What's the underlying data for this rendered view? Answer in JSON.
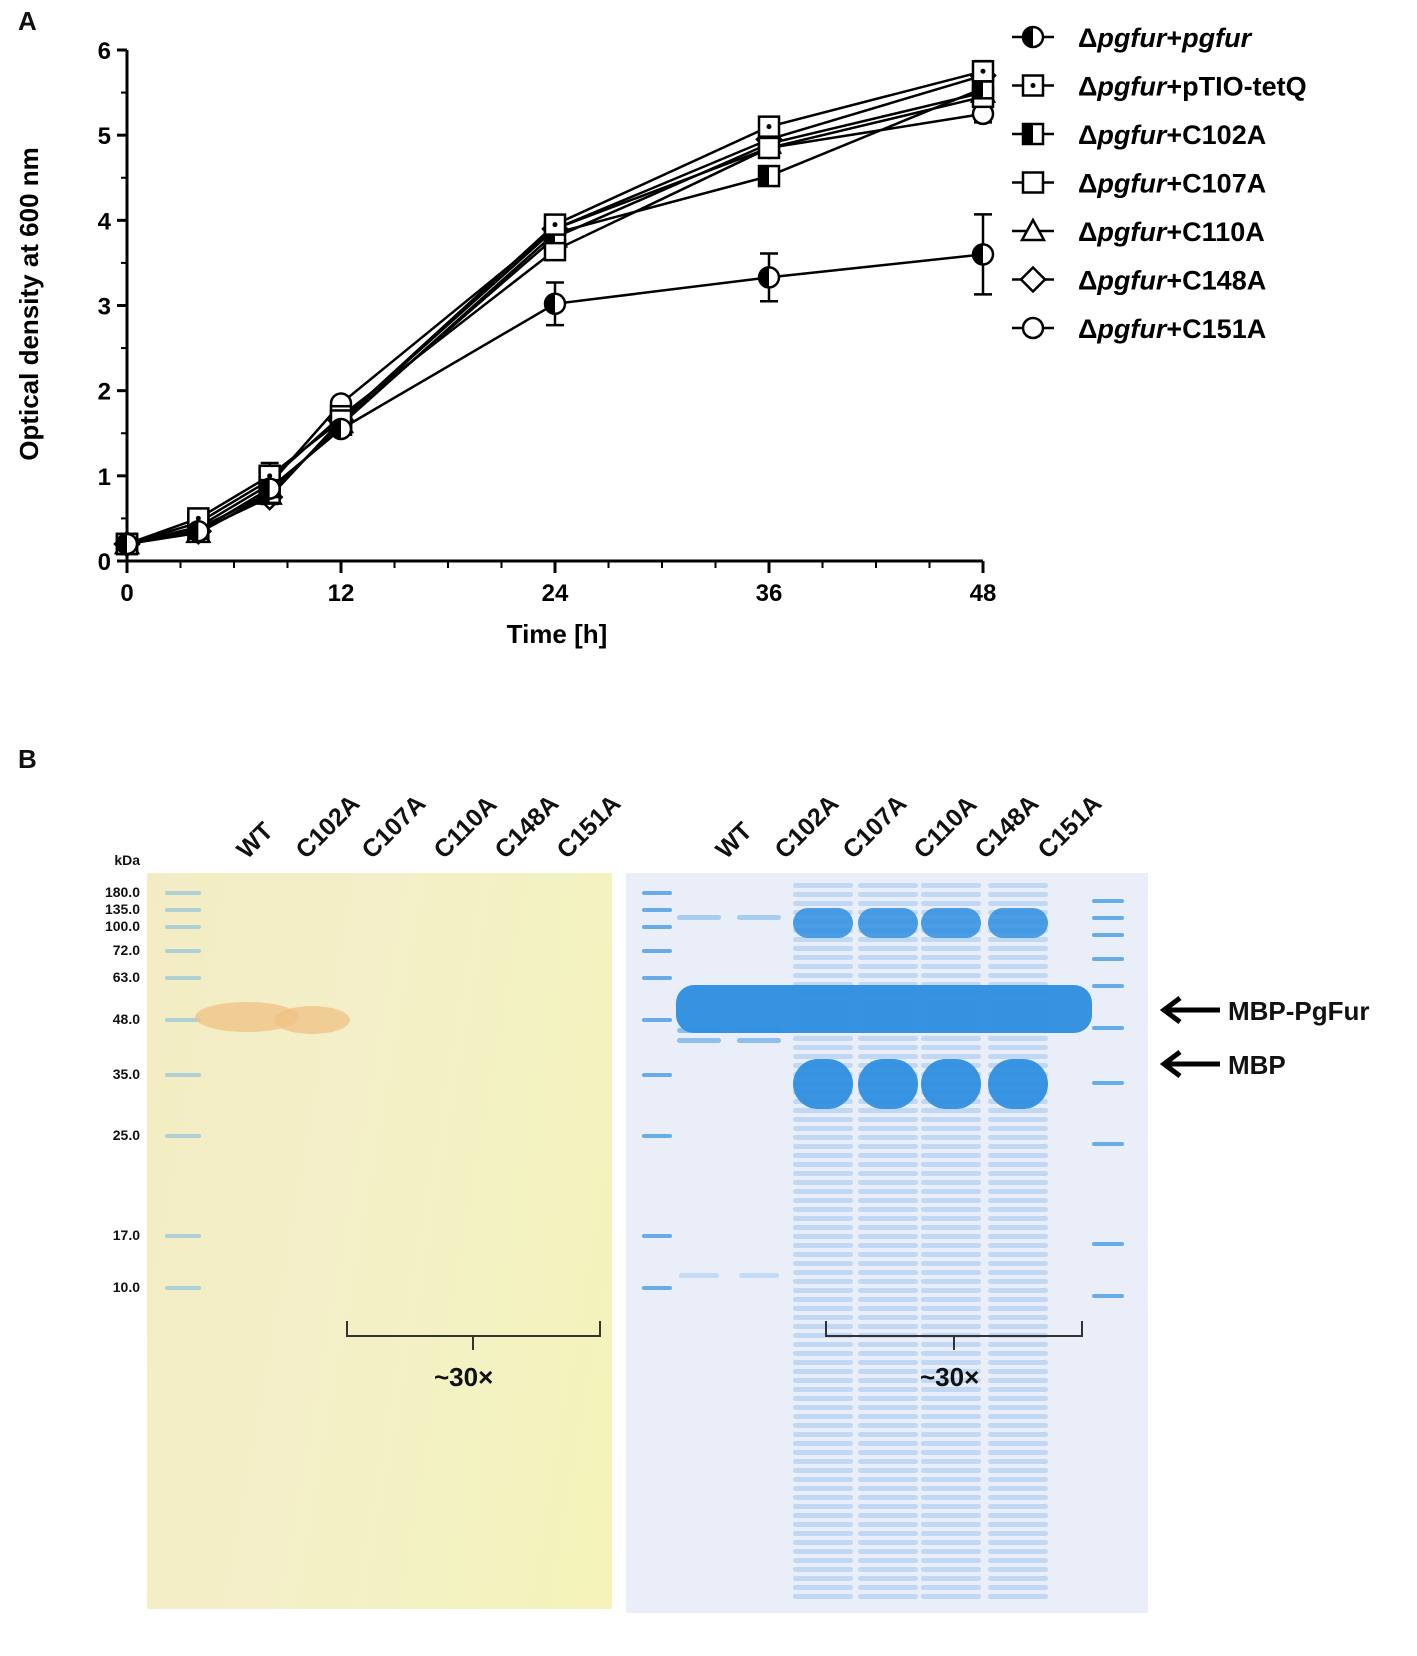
{
  "panels": {
    "a": "A",
    "b": "B"
  },
  "chart_data": {
    "type": "line",
    "xlabel": "Time [h]",
    "ylabel": "Optical density at 600 nm",
    "xlim": [
      0,
      48
    ],
    "ylim": [
      0,
      6
    ],
    "xticks": [
      0,
      12,
      24,
      36,
      48
    ],
    "yticks": [
      0,
      1,
      2,
      3,
      4,
      5,
      6
    ],
    "x": [
      0,
      4,
      8,
      12,
      24,
      36,
      48
    ],
    "series": [
      {
        "name_prefix": "Δ",
        "name_italic": "pgfur",
        "name_plain": "+",
        "name_italic2": "pgfur",
        "marker": "half-circle",
        "values": [
          0.2,
          0.35,
          0.85,
          1.55,
          3.02,
          3.33,
          3.6
        ],
        "errors": [
          0.03,
          0.05,
          0.1,
          0.05,
          0.25,
          0.28,
          0.47
        ]
      },
      {
        "name_prefix": "Δ",
        "name_italic": "pgfur",
        "name_plain": "+pTIO-tetQ",
        "name_italic2": "",
        "marker": "square-dot",
        "values": [
          0.2,
          0.5,
          1.0,
          1.65,
          3.95,
          5.1,
          5.75
        ],
        "errors": [
          0.03,
          0.05,
          0.15,
          0.05,
          0.08,
          0.08,
          0.12
        ]
      },
      {
        "name_prefix": "Δ",
        "name_italic": "pgfur",
        "name_plain": "+C102A",
        "name_italic2": "",
        "marker": "half-square",
        "values": [
          0.2,
          0.38,
          0.8,
          1.6,
          3.85,
          4.52,
          5.55
        ],
        "errors": [
          0.03,
          0.05,
          0.1,
          0.05,
          0.08,
          0.08,
          0.1
        ]
      },
      {
        "name_prefix": "Δ",
        "name_italic": "pgfur",
        "name_plain": "+C107A",
        "name_italic2": "",
        "marker": "square",
        "values": [
          0.2,
          0.45,
          0.95,
          1.7,
          3.65,
          4.85,
          5.45
        ],
        "errors": [
          0.03,
          0.05,
          0.12,
          0.05,
          0.08,
          0.08,
          0.1
        ]
      },
      {
        "name_prefix": "Δ",
        "name_italic": "pgfur",
        "name_plain": "+C110A",
        "name_italic2": "",
        "marker": "triangle",
        "values": [
          0.2,
          0.33,
          0.78,
          1.62,
          3.8,
          4.9,
          5.5
        ],
        "errors": [
          0.03,
          0.04,
          0.08,
          0.05,
          0.08,
          0.08,
          0.1
        ]
      },
      {
        "name_prefix": "Δ",
        "name_italic": "pgfur",
        "name_plain": "+C148A",
        "name_italic2": "",
        "marker": "diamond",
        "values": [
          0.2,
          0.35,
          0.75,
          1.65,
          3.9,
          4.95,
          5.7
        ],
        "errors": [
          0.03,
          0.04,
          0.08,
          0.05,
          0.08,
          0.08,
          0.1
        ]
      },
      {
        "name_prefix": "Δ",
        "name_italic": "pgfur",
        "name_plain": "+C151A",
        "name_italic2": "",
        "marker": "circle",
        "values": [
          0.2,
          0.4,
          0.9,
          1.85,
          3.9,
          4.85,
          5.25
        ],
        "errors": [
          0.03,
          0.05,
          0.1,
          0.05,
          0.08,
          0.08,
          0.1
        ]
      }
    ]
  },
  "gel": {
    "kda_label": "kDa",
    "markers": [
      "180.0",
      "135.0",
      "100.0",
      "72.0",
      "63.0",
      "48.0",
      "35.0",
      "25.0",
      "17.0",
      "10.0"
    ],
    "left_lanes": [
      "WT",
      "C102A",
      "C107A",
      "C110A",
      "C148A",
      "C151A"
    ],
    "right_lanes": [
      "WT",
      "C102A",
      "C107A",
      "C110A",
      "C148A",
      "C151A"
    ],
    "arrows": [
      "MBP-PgFur",
      "MBP"
    ],
    "fold_left": "~30×",
    "fold_right": "~30×",
    "colors": {
      "yellow_gel": "#f4eec0",
      "blue_gel": "#e6edf8",
      "blue_band": "#2f8fe0",
      "orange_band": "#f0c58a"
    }
  }
}
